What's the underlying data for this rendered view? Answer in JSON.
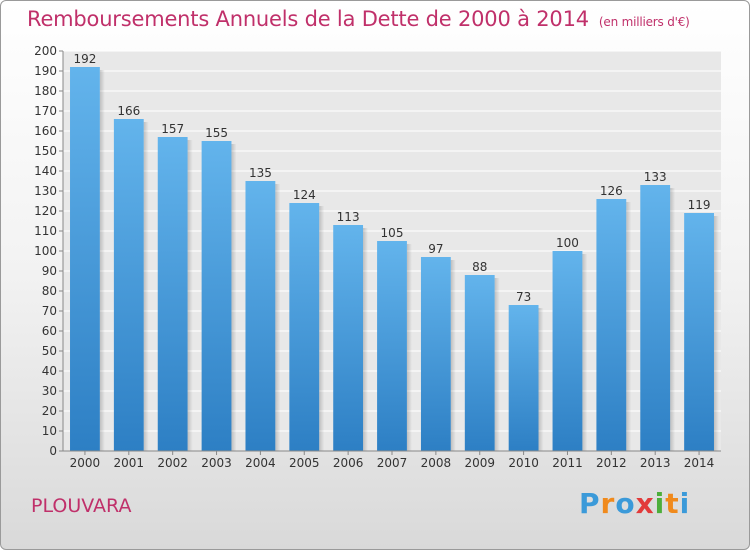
{
  "chart_data": {
    "type": "bar",
    "title": "Remboursements Annuels de la Dette de 2000 à 2014",
    "unit_note": "(en milliers d'€)",
    "categories": [
      "2000",
      "2001",
      "2002",
      "2003",
      "2004",
      "2005",
      "2006",
      "2007",
      "2008",
      "2009",
      "2010",
      "2011",
      "2012",
      "2013",
      "2014"
    ],
    "values": [
      192,
      166,
      157,
      155,
      135,
      124,
      113,
      105,
      97,
      88,
      73,
      100,
      126,
      133,
      119
    ],
    "ylim": [
      0,
      200
    ],
    "ytick_step": 10,
    "xlabel": "",
    "ylabel": "",
    "grid": true,
    "bar_color_top": "#63b4ec",
    "bar_color_bottom": "#2d7fc4"
  },
  "footer": {
    "place_name": "PLOUVARA",
    "brand": "Proxiti",
    "brand_letters": [
      "P",
      "r",
      "o",
      "x",
      "i",
      "t",
      "i"
    ],
    "brand_colors": [
      "#3b9ad9",
      "#f08a1c",
      "#3b9ad9",
      "#e23a3a",
      "#4cae3a",
      "#f08a1c",
      "#3b9ad9"
    ]
  }
}
